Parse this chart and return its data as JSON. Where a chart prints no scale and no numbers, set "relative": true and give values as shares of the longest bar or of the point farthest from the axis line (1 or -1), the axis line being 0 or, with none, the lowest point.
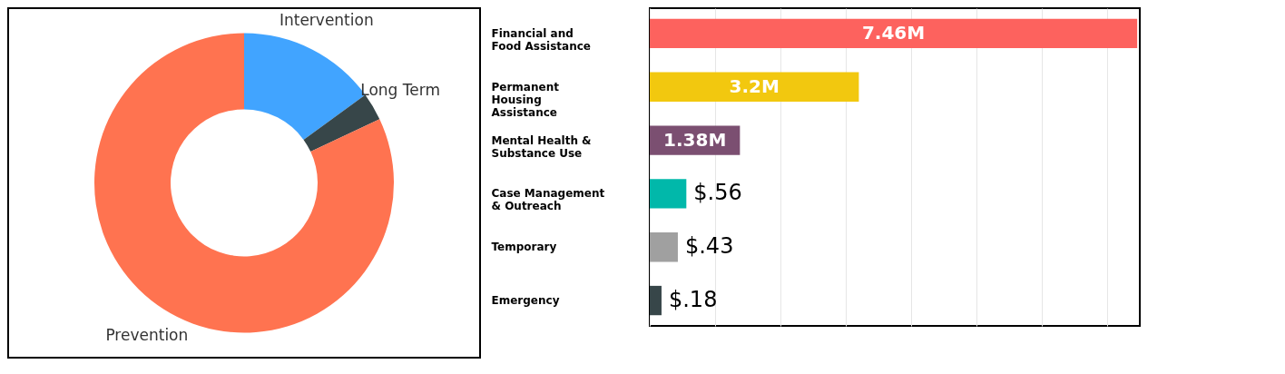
{
  "chart_data": [
    {
      "type": "donut",
      "relative": true,
      "categories": [
        "Intervention",
        "Long Term",
        "Prevention"
      ],
      "values": [
        15,
        3,
        82
      ],
      "colors": [
        "#41a4ff",
        "#374649",
        "#ff7350"
      ],
      "legend": false
    },
    {
      "type": "bar",
      "orientation": "horizontal",
      "categories": [
        "Financial and Food Assistance",
        "Permanent Housing Assistance",
        "Mental Health & Substance Use",
        "Case Management & Outreach",
        "Temporary",
        "Emergency"
      ],
      "values": [
        7.46,
        3.2,
        1.38,
        0.56,
        0.43,
        0.18
      ],
      "colors": [
        "#fd625e",
        "#f2c80f",
        "#7b4f71",
        "#01b8aa",
        "#a0a0a0",
        "#374649"
      ],
      "value_labels": [
        "7.46M",
        "3.2M",
        "1.38M",
        "$.56",
        "$.43",
        "$.18"
      ],
      "xlim": [
        0,
        7.5
      ],
      "xticks": [
        {
          "value": 0,
          "label": null
        },
        {
          "value": 1,
          "label": null
        },
        {
          "value": 2,
          "label": null
        },
        {
          "value": 3,
          "label": null
        },
        {
          "value": 4,
          "label": null
        },
        {
          "value": 5,
          "label": null
        },
        {
          "value": 6,
          "label": null
        },
        {
          "value": 7,
          "label": null
        }
      ],
      "grid": "x",
      "tick_labels": "y",
      "legend": false
    }
  ]
}
